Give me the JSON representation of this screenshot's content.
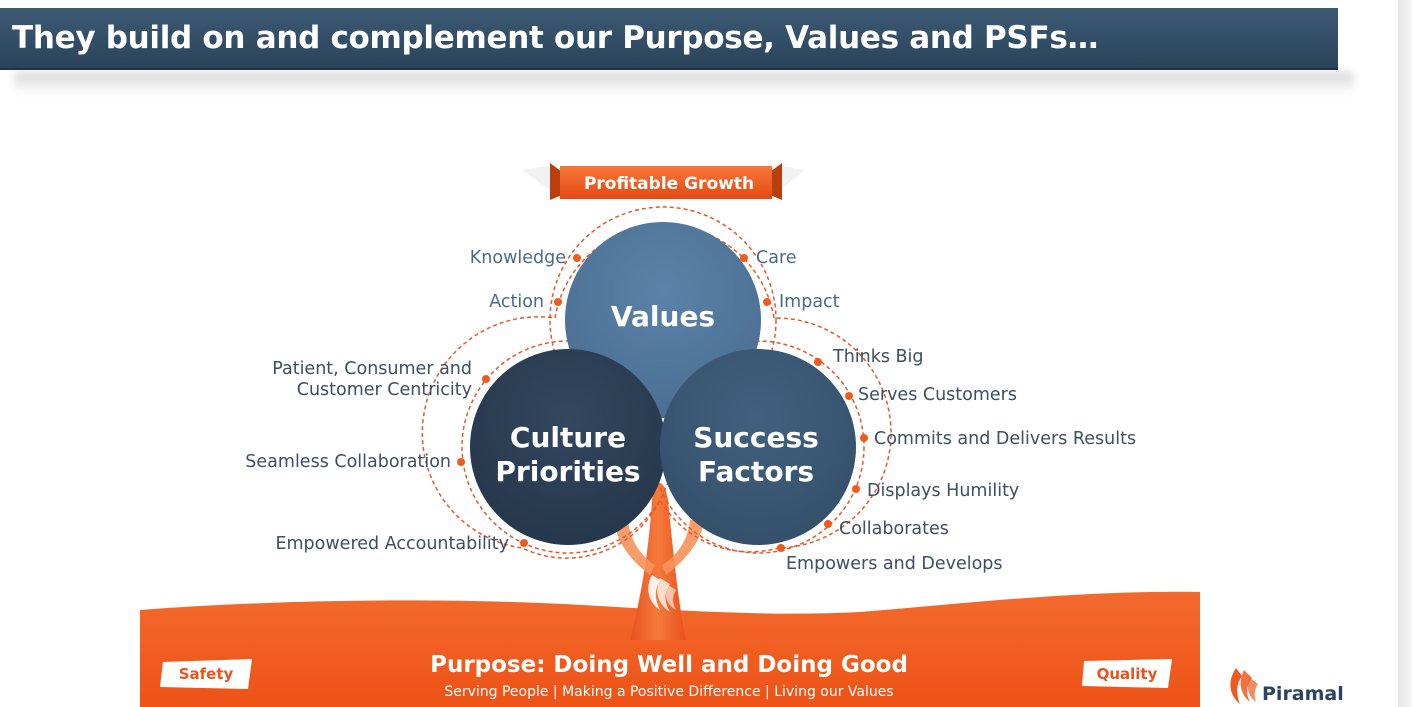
{
  "slide": {
    "title": "They build on and complement our Purpose, Values and PSFs…"
  },
  "diagram": {
    "top_banner": "Profitable Growth",
    "circles": {
      "values": "Values",
      "culture": [
        "Culture",
        "Priorities"
      ],
      "success": [
        "Success",
        "Factors"
      ]
    },
    "values_items": {
      "left": [
        "Knowledge",
        "Action"
      ],
      "right": [
        "Care",
        "Impact"
      ]
    },
    "culture_items": [
      [
        "Patient, Consumer and",
        "Customer Centricity"
      ],
      [
        "Seamless Collaboration"
      ],
      [
        "Empowered Accountability"
      ]
    ],
    "success_items": [
      "Thinks Big",
      "Serves Customers",
      "Commits and Delivers Results",
      "Displays Humility",
      "Collaborates",
      "Empowers and Develops"
    ],
    "purpose": {
      "title": "Purpose: Doing Well and Doing Good",
      "subtitle": "Serving People | Making a Positive Difference | Living our Values"
    },
    "badges": {
      "left": "Safety",
      "right": "Quality"
    }
  },
  "logo": {
    "name": "Piramal"
  },
  "colors": {
    "orange": "#f15a22",
    "values_circle": "#52779b",
    "culture_circle": "#2c3e57",
    "success_circle": "#3b5470",
    "title_bar": "#34506a"
  },
  "icons": [
    "piramal-flame-logo-icon"
  ]
}
